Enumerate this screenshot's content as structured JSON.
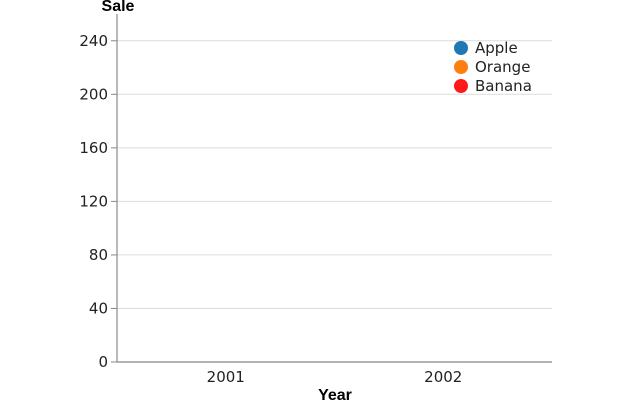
{
  "chart_data": {
    "type": "bar",
    "title": "",
    "xlabel": "Year",
    "ylabel": "Sale",
    "categories": [
      "2001",
      "2002"
    ],
    "ylim": [
      0,
      260
    ],
    "yticks": [
      0,
      40,
      80,
      120,
      160,
      200,
      240
    ],
    "grid": true,
    "legend_position": "top-right",
    "series": [
      {
        "name": "Apple",
        "color": "#1f77b4",
        "values": [
          null,
          null
        ]
      },
      {
        "name": "Orange",
        "color": "#ff7f0e",
        "values": [
          null,
          null
        ]
      },
      {
        "name": "Banana",
        "color": "#ff1a1a",
        "values": [
          null,
          null
        ]
      }
    ]
  }
}
